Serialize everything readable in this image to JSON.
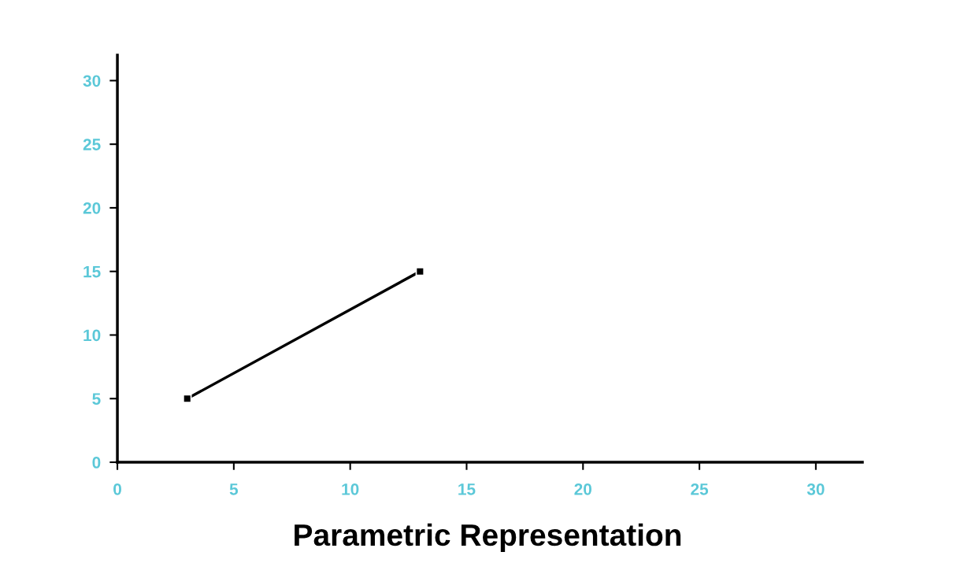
{
  "chart_data": {
    "type": "line",
    "title": "Parametric Representation",
    "x": [
      3,
      13
    ],
    "series": [
      {
        "color": "#000000",
        "values": [
          5,
          15
        ]
      }
    ],
    "marker": "square",
    "line_style": "solid",
    "xlim": [
      0,
      32
    ],
    "ylim": [
      0,
      32
    ],
    "xticks": [
      0,
      5,
      10,
      15,
      20,
      25,
      30
    ],
    "yticks": [
      0,
      5,
      10,
      15,
      20,
      25,
      30
    ],
    "grid": false
  }
}
